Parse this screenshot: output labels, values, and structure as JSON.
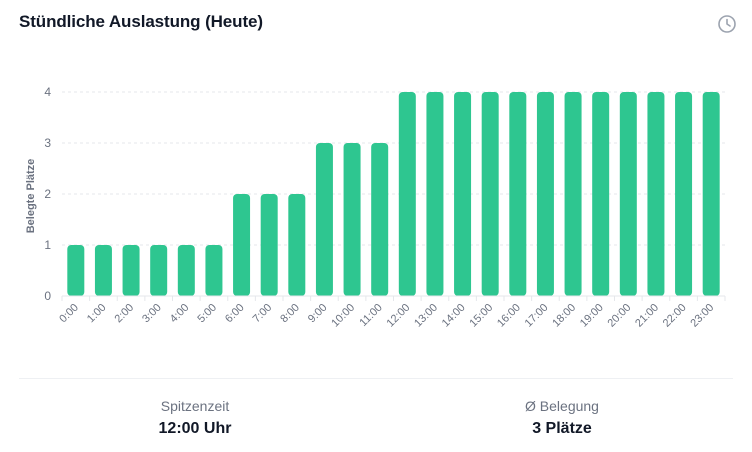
{
  "header": {
    "title": "Stündliche Auslastung (Heute)",
    "icon": "clock-icon"
  },
  "colors": {
    "bar": "#2ec690",
    "grid": "#e5e7eb",
    "axis_text": "#6b7280"
  },
  "chart_data": {
    "type": "bar",
    "title": "Stündliche Auslastung (Heute)",
    "xlabel": "",
    "ylabel": "Belegte Plätze",
    "ylim": [
      0,
      4
    ],
    "yticks": [
      0,
      1,
      2,
      3,
      4
    ],
    "grid": true,
    "legend": null,
    "categories": [
      "0:00",
      "1:00",
      "2:00",
      "3:00",
      "4:00",
      "5:00",
      "6:00",
      "7:00",
      "8:00",
      "9:00",
      "10:00",
      "11:00",
      "12:00",
      "13:00",
      "14:00",
      "15:00",
      "16:00",
      "17:00",
      "18:00",
      "19:00",
      "20:00",
      "21:00",
      "22:00",
      "23:00"
    ],
    "values": [
      1,
      1,
      1,
      1,
      1,
      1,
      2,
      2,
      2,
      3,
      3,
      3,
      4,
      4,
      4,
      4,
      4,
      4,
      4,
      4,
      4,
      4,
      4,
      4
    ]
  },
  "stats": [
    {
      "label": "Spitzenzeit",
      "value": "12:00 Uhr"
    },
    {
      "label": "Ø Belegung",
      "value": "3 Plätze"
    }
  ]
}
